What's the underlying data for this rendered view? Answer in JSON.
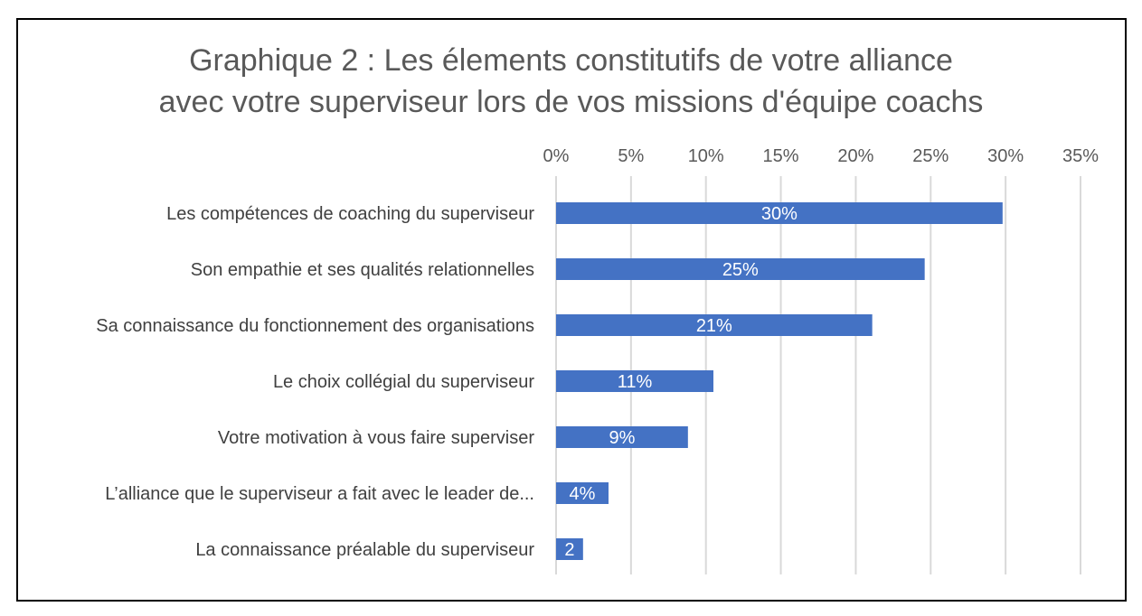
{
  "chart_data": {
    "type": "bar",
    "orientation": "horizontal",
    "title_lines": [
      "Graphique 2 : Les élements constitutifs de votre alliance",
      "avec votre superviseur lors de vos missions d'équipe coachs"
    ],
    "categories": [
      "Les compétences de coaching du superviseur",
      "Son empathie et ses qualités relationnelles",
      "Sa connaissance du fonctionnement des organisations",
      "Le choix collégial du superviseur",
      "Votre motivation à vous faire superviser",
      "L’alliance que le superviseur a fait avec le leader de...",
      "La connaissance préalable du superviseur"
    ],
    "values": [
      29.8,
      24.6,
      21.1,
      10.5,
      8.8,
      3.5,
      1.8
    ],
    "data_labels": [
      "30%",
      "25%",
      "21%",
      "11%",
      "9%",
      "4%",
      "2"
    ],
    "x_ticks": [
      "0%",
      "5%",
      "10%",
      "15%",
      "20%",
      "25%",
      "30%",
      "35%"
    ],
    "xlim": [
      0,
      35
    ],
    "x_axis_position": "top",
    "grid": true,
    "legend": "none",
    "colors": {
      "bar": "#4472C4",
      "grid": "#D9D9D9",
      "text": "#595959"
    }
  }
}
